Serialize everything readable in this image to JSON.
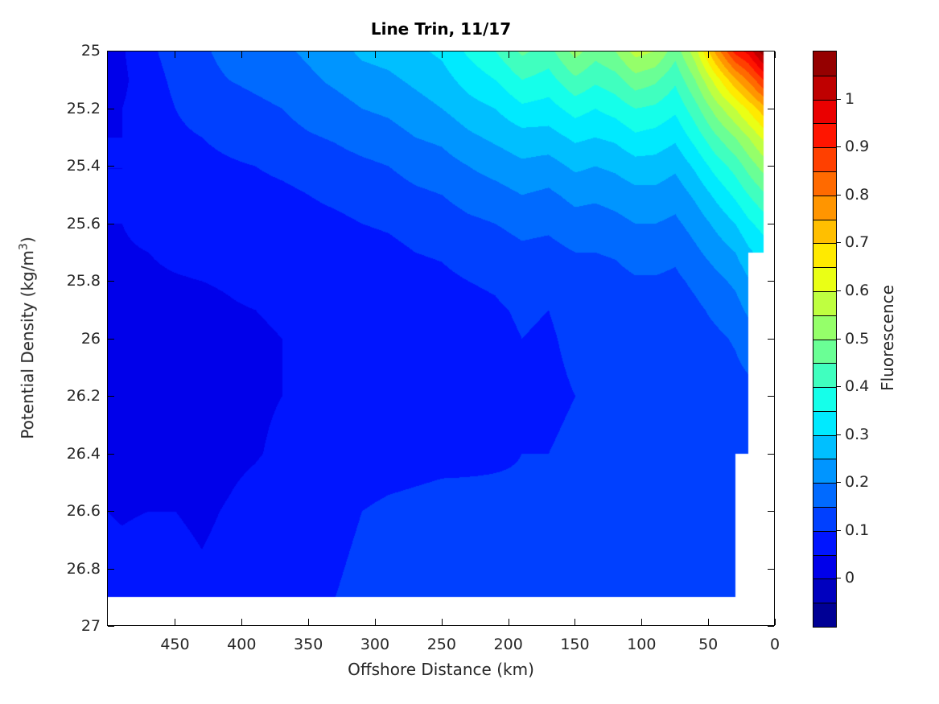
{
  "title": "Line Trin, 11/17",
  "axes": {
    "xlabel": "Offshore Distance (km)",
    "ylabel_pre": "Potential Density (kg/m",
    "ylabel_sup": "3",
    "ylabel_post": ")",
    "x_ticks": [
      450,
      400,
      350,
      300,
      250,
      200,
      150,
      100,
      50,
      0
    ],
    "y_ticks": [
      25,
      25.2,
      25.4,
      25.6,
      25.8,
      26,
      26.2,
      26.4,
      26.6,
      26.8,
      27
    ],
    "x_range_km": [
      501,
      0
    ],
    "y_range": [
      25,
      27
    ],
    "x_reversed": true,
    "y_increases_downward": true
  },
  "colorbar": {
    "label": "Fluorescence",
    "ticks": [
      1,
      0.9,
      0.8,
      0.7,
      0.6,
      0.5,
      0.4,
      0.3,
      0.2,
      0.1,
      0
    ],
    "value_min": -0.1,
    "value_max": 1.1,
    "level_step": 0.05,
    "n_segments": 24,
    "colormap": "jet"
  },
  "chart_data": {
    "type": "filled-contour",
    "title": "Line Trin, 11/17",
    "xlabel": "Offshore Distance (km)",
    "ylabel": "Potential Density (kg/m3)",
    "zlabel": "Fluorescence",
    "colormap": "jet",
    "contour_levels": {
      "min": -0.1,
      "max": 1.1,
      "step": 0.05
    },
    "xlim_km": [
      0,
      501
    ],
    "ylim_density": [
      25,
      27
    ],
    "x_axis_reversed": true,
    "data_bottom_density": 26.9,
    "x_stations_km": [
      501,
      490,
      470,
      450,
      430,
      410,
      390,
      370,
      350,
      330,
      310,
      290,
      270,
      250,
      230,
      210,
      190,
      170,
      150,
      135,
      120,
      105,
      90,
      75,
      60,
      45,
      30,
      20,
      9
    ],
    "y_density_levels": [
      25.0,
      25.1,
      25.2,
      25.3,
      25.4,
      25.5,
      25.6,
      25.7,
      25.8,
      25.9,
      26.0,
      26.2,
      26.4,
      26.6,
      26.9
    ],
    "values": [
      [
        0.03,
        0.045,
        0.09,
        0.12,
        0.14,
        0.17,
        0.18,
        0.19,
        0.21,
        0.23,
        0.26,
        0.27,
        0.29,
        0.31,
        0.36,
        0.4,
        0.46,
        0.43,
        0.52,
        0.47,
        0.5,
        0.57,
        0.55,
        0.47,
        0.58,
        0.76,
        0.92,
        0.97,
        1.08
      ],
      [
        0.03,
        0.04,
        0.08,
        0.11,
        0.13,
        0.15,
        0.16,
        0.17,
        0.19,
        0.21,
        0.23,
        0.24,
        0.26,
        0.28,
        0.32,
        0.35,
        0.4,
        0.38,
        0.44,
        0.41,
        0.43,
        0.48,
        0.46,
        0.41,
        0.5,
        0.62,
        0.74,
        0.81,
        0.9
      ],
      [
        0.045,
        0.05,
        0.075,
        0.1,
        0.12,
        0.13,
        0.14,
        0.15,
        0.17,
        0.18,
        0.2,
        0.21,
        0.23,
        0.25,
        0.28,
        0.3,
        0.34,
        0.33,
        0.37,
        0.35,
        0.37,
        0.4,
        0.39,
        0.36,
        0.43,
        0.52,
        0.6,
        0.66,
        0.73
      ],
      [
        0.05,
        0.05,
        0.07,
        0.09,
        0.1,
        0.11,
        0.12,
        0.13,
        0.145,
        0.155,
        0.17,
        0.18,
        0.2,
        0.21,
        0.24,
        0.26,
        0.28,
        0.28,
        0.31,
        0.3,
        0.31,
        0.34,
        0.33,
        0.31,
        0.37,
        0.44,
        0.5,
        0.55,
        0.61
      ],
      [
        0.05,
        0.05,
        0.065,
        0.08,
        0.09,
        0.095,
        0.1,
        0.11,
        0.12,
        0.13,
        0.14,
        0.15,
        0.17,
        0.18,
        0.2,
        0.22,
        0.24,
        0.23,
        0.26,
        0.25,
        0.26,
        0.28,
        0.28,
        0.26,
        0.31,
        0.37,
        0.42,
        0.47,
        0.52
      ],
      [
        0.05,
        0.05,
        0.06,
        0.07,
        0.075,
        0.08,
        0.085,
        0.09,
        0.1,
        0.11,
        0.12,
        0.125,
        0.14,
        0.15,
        0.17,
        0.18,
        0.2,
        0.19,
        0.215,
        0.21,
        0.22,
        0.235,
        0.235,
        0.22,
        0.26,
        0.31,
        0.36,
        0.4,
        0.44
      ],
      [
        0.05,
        0.05,
        0.055,
        0.06,
        0.065,
        0.07,
        0.075,
        0.08,
        0.085,
        0.09,
        0.1,
        0.105,
        0.115,
        0.125,
        0.14,
        0.15,
        0.165,
        0.16,
        0.18,
        0.175,
        0.185,
        0.2,
        0.2,
        0.19,
        0.22,
        0.26,
        0.3,
        0.34,
        0.37
      ],
      [
        0.05,
        0.048,
        0.05,
        0.055,
        0.058,
        0.06,
        0.065,
        0.068,
        0.072,
        0.078,
        0.085,
        0.09,
        0.1,
        0.105,
        0.12,
        0.125,
        0.14,
        0.135,
        0.15,
        0.15,
        0.155,
        0.17,
        0.17,
        0.16,
        0.19,
        0.22,
        0.25,
        0.29,
        0.32
      ],
      [
        0.048,
        0.045,
        0.046,
        0.048,
        0.05,
        0.052,
        0.056,
        0.058,
        0.062,
        0.066,
        0.072,
        0.078,
        0.085,
        0.09,
        0.1,
        0.105,
        0.12,
        0.115,
        0.13,
        0.13,
        0.135,
        0.145,
        0.145,
        0.14,
        0.16,
        0.185,
        0.21,
        0.245,
        null
      ],
      [
        0.04,
        0.038,
        0.04,
        0.042,
        0.045,
        0.048,
        0.05,
        0.052,
        0.056,
        0.06,
        0.065,
        0.07,
        0.075,
        0.08,
        0.09,
        0.095,
        0.105,
        0.1,
        0.115,
        0.115,
        0.12,
        0.13,
        0.13,
        0.125,
        0.14,
        0.16,
        0.18,
        0.21,
        null
      ],
      [
        0.035,
        0.034,
        0.036,
        0.04,
        0.042,
        0.045,
        0.048,
        0.05,
        0.053,
        0.057,
        0.06,
        0.065,
        0.07,
        0.075,
        0.085,
        0.09,
        0.1,
        0.095,
        0.11,
        0.11,
        0.115,
        0.12,
        0.12,
        0.115,
        0.13,
        0.14,
        0.155,
        0.175,
        null
      ],
      [
        0.03,
        0.03,
        0.032,
        0.035,
        0.038,
        0.042,
        0.046,
        0.05,
        0.055,
        0.058,
        0.062,
        0.066,
        0.07,
        0.075,
        0.08,
        0.085,
        0.09,
        0.09,
        0.1,
        0.1,
        0.105,
        0.11,
        0.11,
        0.105,
        0.115,
        0.12,
        0.13,
        0.135,
        null
      ],
      [
        0.032,
        0.032,
        0.034,
        0.036,
        0.04,
        0.044,
        0.048,
        0.055,
        0.06,
        0.065,
        0.07,
        0.075,
        0.08,
        0.085,
        0.09,
        0.095,
        0.1,
        0.1,
        0.11,
        0.11,
        0.115,
        0.12,
        0.115,
        0.11,
        0.12,
        0.125,
        0.13,
        0.125,
        null
      ],
      [
        0.05,
        0.048,
        0.05,
        0.05,
        0.046,
        0.052,
        0.06,
        0.07,
        0.08,
        0.09,
        0.1,
        0.11,
        0.115,
        0.12,
        0.115,
        0.11,
        0.105,
        0.1,
        0.11,
        0.115,
        0.12,
        0.125,
        0.12,
        0.115,
        0.12,
        0.115,
        0.11,
        null,
        null
      ],
      [
        0.06,
        0.06,
        0.065,
        0.06,
        0.055,
        0.06,
        0.07,
        0.08,
        0.09,
        0.1,
        0.11,
        0.12,
        0.125,
        0.13,
        0.12,
        0.115,
        0.11,
        0.105,
        0.11,
        0.12,
        0.125,
        0.13,
        0.125,
        0.12,
        0.12,
        0.115,
        0.11,
        null,
        null
      ]
    ]
  }
}
